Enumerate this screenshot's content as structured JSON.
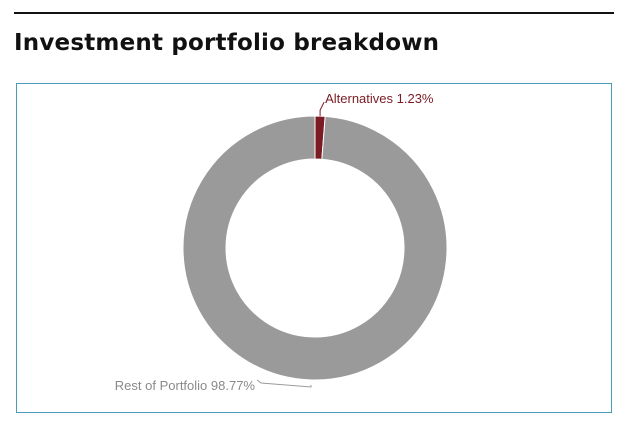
{
  "page": {
    "title": "Investment portfolio breakdown"
  },
  "colors": {
    "rule": "#111111",
    "frame_border": "#4a9bb8",
    "alternatives": "#7b1c24",
    "rest": "#9a9a9a",
    "rest_label": "#8a8a8a"
  },
  "chart_data": {
    "type": "pie",
    "donut": true,
    "title": "",
    "slices": [
      {
        "label": "Alternatives",
        "value": 1.23,
        "display": "Alternatives 1.23%",
        "color": "#7b1c24"
      },
      {
        "label": "Rest of Portfolio",
        "value": 98.77,
        "display": "Rest of Portfolio 98.77%",
        "color": "#9a9a9a"
      }
    ]
  }
}
